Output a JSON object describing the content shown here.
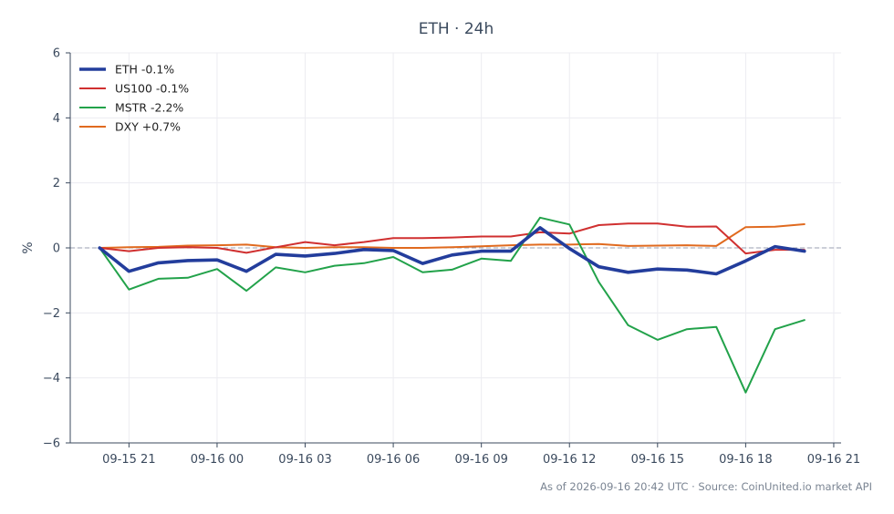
{
  "chart_data": {
    "type": "line",
    "title": "ETH · 24h",
    "xlabel": "",
    "ylabel": "%",
    "ylim": [
      -6,
      6
    ],
    "yticks": [
      -6,
      -4,
      -2,
      0,
      2,
      4,
      6
    ],
    "ytick_labels": [
      "−6",
      "−4",
      "−2",
      "0",
      "2",
      "4",
      "6"
    ],
    "xtick_labels": [
      "09-15 21",
      "09-16 00",
      "09-16 03",
      "09-16 06",
      "09-16 09",
      "09-16 12",
      "09-16 15",
      "09-16 18",
      "09-16 21"
    ],
    "x": [
      "09-15 20:00",
      "09-15 21:00",
      "09-15 22:00",
      "09-15 23:00",
      "09-16 00:00",
      "09-16 01:00",
      "09-16 02:00",
      "09-16 03:00",
      "09-16 04:00",
      "09-16 05:00",
      "09-16 06:00",
      "09-16 07:00",
      "09-16 08:00",
      "09-16 09:00",
      "09-16 10:00",
      "09-16 11:00",
      "09-16 12:00",
      "09-16 13:00",
      "09-16 14:00",
      "09-16 15:00",
      "09-16 16:00",
      "09-16 17:00",
      "09-16 18:00",
      "09-16 19:00",
      "09-16 20:00"
    ],
    "xlim": [
      "09-15 19:00",
      "09-16 21:15"
    ],
    "grid": true,
    "baseline": 0,
    "legend_position": "top-left",
    "series": [
      {
        "name": "ETH -0.1%",
        "color": "#233d9c",
        "values": [
          0.0,
          -0.72,
          -0.46,
          -0.39,
          -0.37,
          -0.72,
          -0.2,
          -0.25,
          -0.17,
          -0.05,
          -0.08,
          -0.48,
          -0.22,
          -0.1,
          -0.1,
          0.62,
          -0.02,
          -0.58,
          -0.75,
          -0.65,
          -0.68,
          -0.8,
          -0.4,
          0.04,
          -0.1
        ]
      },
      {
        "name": "US100 -0.1%",
        "color": "#d03030",
        "values": [
          0.0,
          -0.1,
          0.0,
          0.02,
          0.0,
          -0.15,
          0.02,
          0.18,
          0.08,
          0.18,
          0.3,
          0.3,
          0.32,
          0.35,
          0.35,
          0.48,
          0.44,
          0.7,
          0.75,
          0.75,
          0.65,
          0.66,
          -0.17,
          -0.06,
          -0.06
        ]
      },
      {
        "name": "MSTR -2.2%",
        "color": "#22a24a",
        "values": [
          0.0,
          -1.28,
          -0.95,
          -0.92,
          -0.65,
          -1.32,
          -0.6,
          -0.75,
          -0.55,
          -0.47,
          -0.28,
          -0.75,
          -0.67,
          -0.33,
          -0.4,
          0.93,
          0.72,
          -1.05,
          -2.38,
          -2.83,
          -2.5,
          -2.43,
          -4.45,
          -2.5,
          -2.22
        ]
      },
      {
        "name": "DXY +0.7%",
        "color": "#e06a1f",
        "values": [
          0.0,
          0.02,
          0.03,
          0.07,
          0.08,
          0.1,
          0.02,
          0.0,
          0.02,
          0.02,
          0.0,
          0.0,
          0.02,
          0.05,
          0.08,
          0.1,
          0.1,
          0.12,
          0.06,
          0.07,
          0.08,
          0.06,
          0.64,
          0.65,
          0.73
        ]
      }
    ]
  },
  "footer": "As of 2026-09-16 20:42 UTC · Source: CoinUnited.io market API"
}
